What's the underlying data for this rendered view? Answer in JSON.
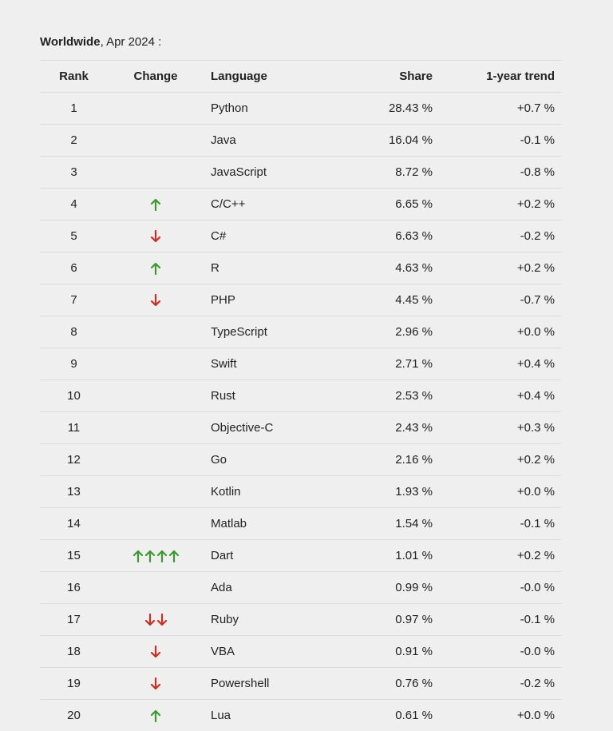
{
  "heading": {
    "bold": "Worldwide",
    "rest": ", Apr 2024 :"
  },
  "colors": {
    "up": "#3a9a2e",
    "down": "#cc2f22"
  },
  "columns": [
    "Rank",
    "Change",
    "Language",
    "Share",
    "1-year trend"
  ],
  "rows": [
    {
      "rank": "1",
      "change": {
        "dir": "none",
        "count": 0
      },
      "language": "Python",
      "share": "28.43 %",
      "trend": "+0.7 %"
    },
    {
      "rank": "2",
      "change": {
        "dir": "none",
        "count": 0
      },
      "language": "Java",
      "share": "16.04 %",
      "trend": "-0.1 %"
    },
    {
      "rank": "3",
      "change": {
        "dir": "none",
        "count": 0
      },
      "language": "JavaScript",
      "share": "8.72 %",
      "trend": "-0.8 %"
    },
    {
      "rank": "4",
      "change": {
        "dir": "up",
        "count": 1
      },
      "language": "C/C++",
      "share": "6.65 %",
      "trend": "+0.2 %"
    },
    {
      "rank": "5",
      "change": {
        "dir": "down",
        "count": 1
      },
      "language": "C#",
      "share": "6.63 %",
      "trend": "-0.2 %"
    },
    {
      "rank": "6",
      "change": {
        "dir": "up",
        "count": 1
      },
      "language": "R",
      "share": "4.63 %",
      "trend": "+0.2 %"
    },
    {
      "rank": "7",
      "change": {
        "dir": "down",
        "count": 1
      },
      "language": "PHP",
      "share": "4.45 %",
      "trend": "-0.7 %"
    },
    {
      "rank": "8",
      "change": {
        "dir": "none",
        "count": 0
      },
      "language": "TypeScript",
      "share": "2.96 %",
      "trend": "+0.0 %"
    },
    {
      "rank": "9",
      "change": {
        "dir": "none",
        "count": 0
      },
      "language": "Swift",
      "share": "2.71 %",
      "trend": "+0.4 %"
    },
    {
      "rank": "10",
      "change": {
        "dir": "none",
        "count": 0
      },
      "language": "Rust",
      "share": "2.53 %",
      "trend": "+0.4 %"
    },
    {
      "rank": "11",
      "change": {
        "dir": "none",
        "count": 0
      },
      "language": "Objective-C",
      "share": "2.43 %",
      "trend": "+0.3 %"
    },
    {
      "rank": "12",
      "change": {
        "dir": "none",
        "count": 0
      },
      "language": "Go",
      "share": "2.16 %",
      "trend": "+0.2 %"
    },
    {
      "rank": "13",
      "change": {
        "dir": "none",
        "count": 0
      },
      "language": "Kotlin",
      "share": "1.93 %",
      "trend": "+0.0 %"
    },
    {
      "rank": "14",
      "change": {
        "dir": "none",
        "count": 0
      },
      "language": "Matlab",
      "share": "1.54 %",
      "trend": "-0.1 %"
    },
    {
      "rank": "15",
      "change": {
        "dir": "up",
        "count": 4
      },
      "language": "Dart",
      "share": "1.01 %",
      "trend": "+0.2 %"
    },
    {
      "rank": "16",
      "change": {
        "dir": "none",
        "count": 0
      },
      "language": "Ada",
      "share": "0.99 %",
      "trend": "-0.0 %"
    },
    {
      "rank": "17",
      "change": {
        "dir": "down",
        "count": 2
      },
      "language": "Ruby",
      "share": "0.97 %",
      "trend": "-0.1 %"
    },
    {
      "rank": "18",
      "change": {
        "dir": "down",
        "count": 1
      },
      "language": "VBA",
      "share": "0.91 %",
      "trend": "-0.0 %"
    },
    {
      "rank": "19",
      "change": {
        "dir": "down",
        "count": 1
      },
      "language": "Powershell",
      "share": "0.76 %",
      "trend": "-0.2 %"
    },
    {
      "rank": "20",
      "change": {
        "dir": "up",
        "count": 1
      },
      "language": "Lua",
      "share": "0.61 %",
      "trend": "+0.0 %"
    }
  ]
}
